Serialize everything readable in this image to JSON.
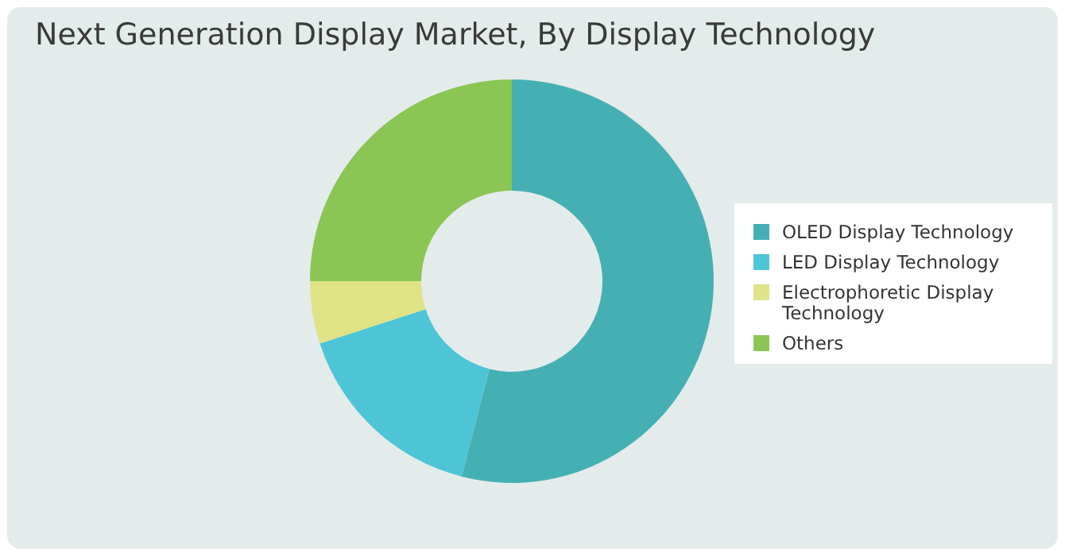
{
  "chart_data": {
    "type": "donut",
    "title": "Next Generation Display Market, By Display Technology",
    "categories": [
      "OLED Display Technology",
      "LED Display Technology",
      "Electrophoretic Display Technology",
      "Others"
    ],
    "values": [
      54,
      16,
      5,
      25
    ],
    "colors": [
      "#45b0b3",
      "#4dc5d6",
      "#dfe386",
      "#8bc554"
    ],
    "legend": "right"
  }
}
